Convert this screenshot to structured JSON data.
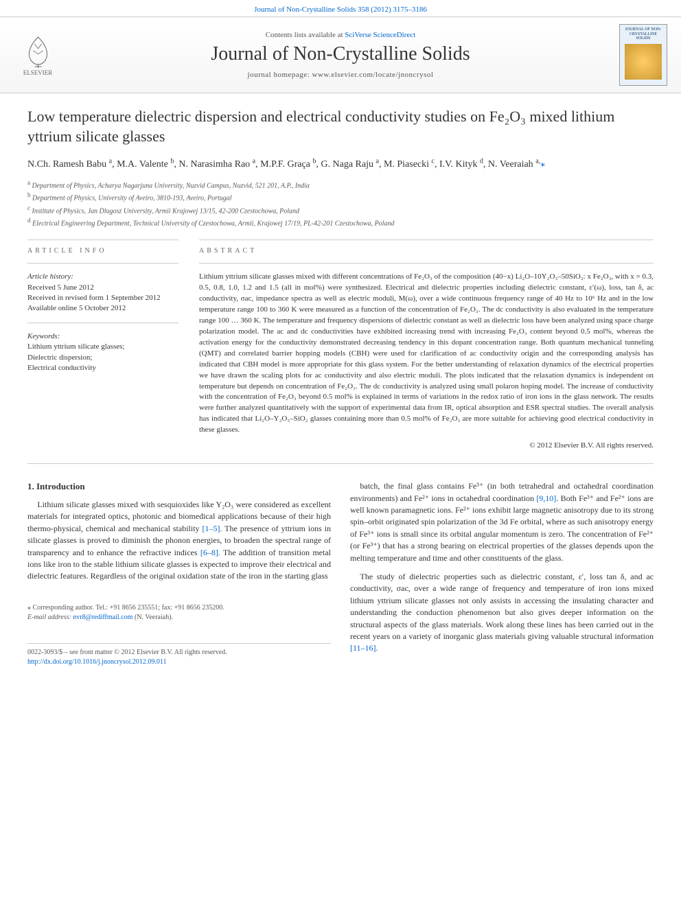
{
  "top_link": {
    "journal": "Journal of Non-Crystalline Solids",
    "issue": "358 (2012) 3175–3186"
  },
  "header": {
    "contents_prefix": "Contents lists available at ",
    "contents_link": "SciVerse ScienceDirect",
    "journal_name": "Journal of Non-Crystalline Solids",
    "homepage": "journal homepage: www.elsevier.com/locate/jnoncrysol",
    "publisher": "ELSEVIER",
    "cover_title": "JOURNAL OF NON-CRYSTALLINE SOLIDS"
  },
  "article": {
    "title": "Low temperature dielectric dispersion and electrical conductivity studies on Fe₂O₃ mixed lithium yttrium silicate glasses",
    "authors_html": "N.Ch. Ramesh Babu <sup>a</sup>, M.A. Valente <sup>b</sup>, N. Narasimha Rao <sup>a</sup>, M.P.F. Graça <sup>b</sup>, G. Naga Raju <sup>a</sup>, M. Piasecki <sup>c</sup>, I.V. Kityk <sup>d</sup>, N. Veeraiah <sup>a,</sup>",
    "affiliations": [
      {
        "sup": "a",
        "text": "Department of Physics, Acharya Nagarjuna University, Nuzvid Campus, Nuzvid, 521 201, A.P., India"
      },
      {
        "sup": "b",
        "text": "Department of Physics, University of Aveiro, 3810-193, Aveiro, Portugal"
      },
      {
        "sup": "c",
        "text": "Institute of Physics, Jan Dlugosz University, Armii Krajowej 13/15, 42-200 Czestochowa, Poland"
      },
      {
        "sup": "d",
        "text": "Electrical Engineering Department, Technical University of Czestochowa, Armii, Krajowej 17/19, PL-42-201 Czestochowa, Poland"
      }
    ]
  },
  "info": {
    "section_label": "ARTICLE INFO",
    "history_head": "Article history:",
    "history": [
      "Received 5 June 2012",
      "Received in revised form 1 September 2012",
      "Available online 5 October 2012"
    ],
    "keywords_head": "Keywords:",
    "keywords": [
      "Lithium yttrium silicate glasses;",
      "Dielectric dispersion;",
      "Electrical conductivity"
    ]
  },
  "abstract": {
    "section_label": "ABSTRACT",
    "text": "Lithium yttrium silicate glasses mixed with different concentrations of Fe₂O₃ of the composition (40−x) Li₂O–10Y₂O₃–50SiO₂: x Fe₂O₃, with x = 0.3, 0.5, 0.8, 1.0, 1.2 and 1.5 (all in mol%) were synthesized. Electrical and dielectric properties including dielectric constant, ε′(ω), loss, tan δ, ac conductivity, σac, impedance spectra as well as electric moduli, M(ω), over a wide continuous frequency range of 40 Hz to 10⁶ Hz and in the low temperature range 100 to 360 K were measured as a function of the concentration of Fe₂O₃. The dc conductivity is also evaluated in the temperature range 100 … 360 K. The temperature and frequency dispersions of dielectric constant as well as dielectric loss have been analyzed using space charge polarization model. The ac and dc conductivities have exhibited increasing trend with increasing Fe₂O₃ content beyond 0.5 mol%, whereas the activation energy for the conductivity demonstrated decreasing tendency in this dopant concentration range. Both quantum mechanical tunneling (QMT) and correlated barrier hopping models (CBH) were used for clarification of ac conductivity origin and the corresponding analysis has indicated that CBH model is more appropriate for this glass system. For the better understanding of relaxation dynamics of the electrical properties we have drawn the scaling plots for ac conductivity and also electric moduli. The plots indicated that the relaxation dynamics is independent on temperature but depends on concentration of Fe₂O₃. The dc conductivity is analyzed using small polaron hoping model. The increase of conductivity with the concentration of Fe₂O₃ beyond 0.5 mol% is explained in terms of variations in the redox ratio of iron ions in the glass network. The results were further analyzed quantitatively with the support of experimental data from IR, optical absorption and ESR spectral studies. The overall analysis has indicated that Li₂O–Y₂O₃–SiO₂ glasses containing more than 0.5 mol% of Fe₂O₃ are more suitable for achieving good electrical conductivity in these glasses.",
    "copyright": "© 2012 Elsevier B.V. All rights reserved."
  },
  "body": {
    "intro_head": "1. Introduction",
    "col1_p1": "Lithium silicate glasses mixed with sesquioxides like Y₂O₃ were considered as excellent materials for integrated optics, photonic and biomedical applications because of their high thermo-physical, chemical and mechanical stability [1–5]. The presence of yttrium ions in silicate glasses is proved to diminish the phonon energies, to broaden the spectral range of transparency and to enhance the refractive indices [6–8]. The addition of transition metal ions like iron to the stable lithium silicate glasses is expected to improve their electrical and dielectric features. Regardless of the original oxidation state of the iron in the starting glass",
    "col2_p1": "batch, the final glass contains Fe³⁺ (in both tetrahedral and octahedral coordination environments) and Fe²⁺ ions in octahedral coordination [9,10]. Both Fe³⁺ and Fe²⁺ ions are well known paramagnetic ions. Fe²⁺ ions exhibit large magnetic anisotropy due to its strong spin–orbit originated spin polarization of the 3d Fe orbital, where as such anisotropy energy of Fe³⁺ ions is small since its orbital angular momentum is zero. The concentration of Fe²⁺ (or Fe³⁺) that has a strong bearing on electrical properties of the glasses depends upon the melting temperature and time and other constituents of the glass.",
    "col2_p2": "The study of dielectric properties such as dielectric constant, ε′, loss tan δ, and ac conductivity, σac, over a wide range of frequency and temperature of iron ions mixed lithium yttrium silicate glasses not only assists in accessing the insulating character and understanding the conduction phenomenon but also gives deeper information on the structural aspects of the glass materials. Work along these lines has been carried out in the recent years on a variety of inorganic glass materials giving valuable structural information [11–16].",
    "refs": {
      "r1": "[1–5]",
      "r2": "[6–8]",
      "r3": "[9,10]",
      "r4": "[11–16]"
    }
  },
  "corr": {
    "star": "⁎",
    "line1": "Corresponding author. Tel.: +91 8656 235551; fax: +91 8656 235200.",
    "line2_label": "E-mail address: ",
    "email": "nvr8@rediffmail.com",
    "line2_suffix": " (N. Veeraiah)."
  },
  "footer": {
    "issn": "0022-3093/$ – see front matter © 2012 Elsevier B.V. All rights reserved.",
    "doi": "http://dx.doi.org/10.1016/j.jnoncrysol.2012.09.011"
  },
  "colors": {
    "link": "#0066cc",
    "text": "#333333",
    "muted": "#555555",
    "rule": "#cccccc"
  }
}
